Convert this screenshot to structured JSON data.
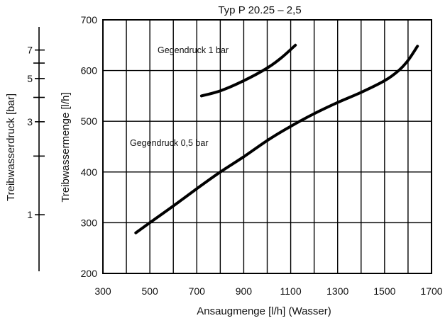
{
  "chart_data": {
    "type": "line",
    "title": "Typ P 20.25 – 2,5",
    "xlabel": "Ansaugmenge [l/h]  (Wasser)",
    "ylabel": "Treibwassermenge [l/h]",
    "y2label": "Treibwasserdruck [bar]",
    "xlim": [
      300,
      1700
    ],
    "ylim": [
      200,
      700
    ],
    "x_ticks": [
      "300",
      "500",
      "700",
      "900",
      "1100",
      "1300",
      "1500",
      "1700"
    ],
    "y_ticks": [
      "200",
      "300",
      "400",
      "500",
      "600",
      "700"
    ],
    "grid": true,
    "pressure_axis": {
      "scale": "log",
      "range": [
        0.5,
        10
      ],
      "labeled_ticks": [
        1,
        3,
        5,
        7
      ],
      "tick_labels": [
        "1",
        "3",
        "5",
        "7"
      ],
      "minor_ticks": [
        2,
        4,
        6
      ]
    },
    "series": [
      {
        "name": "Gegendruck 1 bar",
        "x": [
          720,
          800,
          900,
          1000,
          1060,
          1120
        ],
        "y": [
          550,
          560,
          580,
          605,
          625,
          650
        ]
      },
      {
        "name": "Gegendruck 0,5 bar",
        "x": [
          440,
          500,
          600,
          700,
          800,
          900,
          1000,
          1100,
          1200,
          1300,
          1400,
          1500,
          1560,
          1600,
          1640
        ],
        "y": [
          280,
          300,
          333,
          367,
          400,
          430,
          462,
          490,
          515,
          537,
          557,
          580,
          600,
          620,
          648
        ]
      }
    ],
    "annotations": [
      {
        "text": "Gegendruck 1 bar",
        "series": 0
      },
      {
        "text": "Gegendruck 0,5 bar",
        "series": 1
      }
    ],
    "colors": {
      "line": "#000000",
      "grid": "#000000"
    }
  }
}
